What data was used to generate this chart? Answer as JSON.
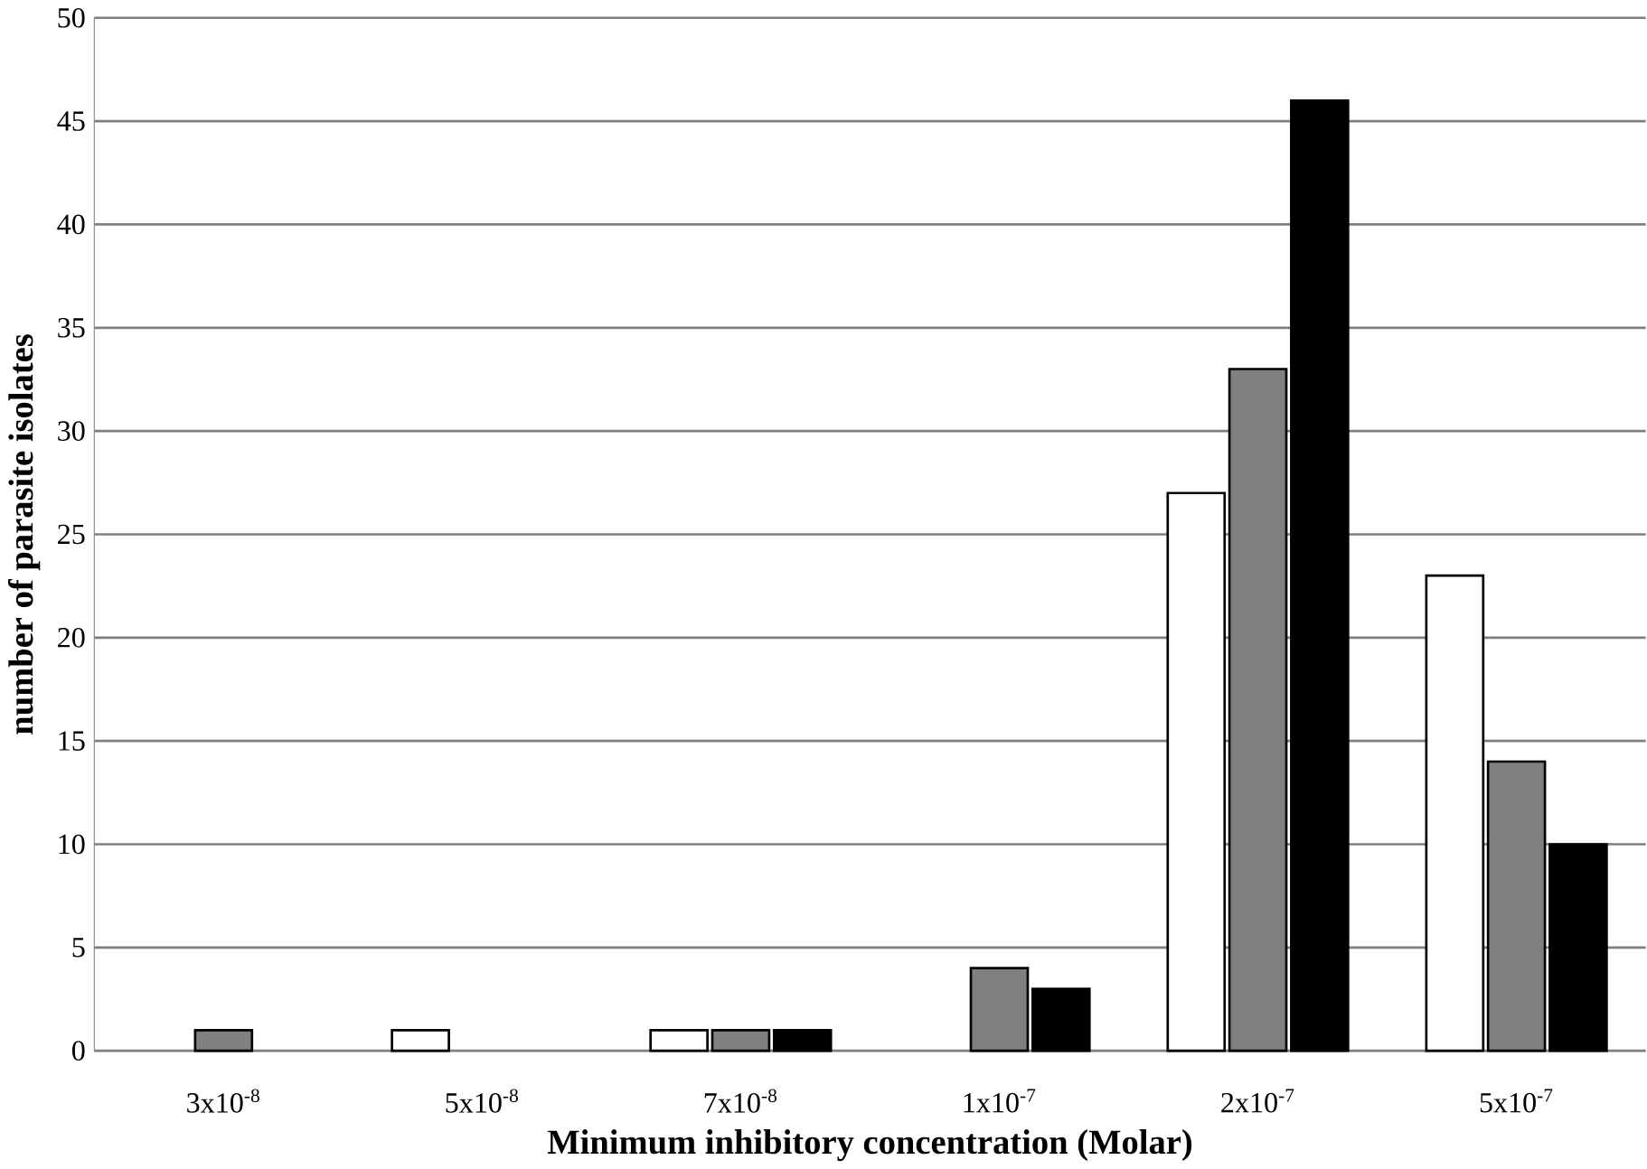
{
  "chart_data": {
    "type": "bar",
    "xlabel": "Minimum inhibitory concentration (Molar)",
    "ylabel": "number of parasite isolates",
    "categories": [
      "3x10$^{-8}$",
      "5x10$^{-8}$",
      "7x10$^{-8}$",
      "1x10$^{-7}$",
      "2x10$^{-7}$",
      "5x10$^{-7}$"
    ],
    "series": [
      {
        "color": "#ffffff",
        "values": [
          0,
          1,
          1,
          0,
          27,
          23
        ]
      },
      {
        "color": "#808080",
        "values": [
          1,
          0,
          1,
          4,
          33,
          14
        ]
      },
      {
        "color": "#000000",
        "values": [
          0,
          0,
          1,
          3,
          46,
          10
        ]
      }
    ],
    "ylim": [
      0,
      50
    ],
    "yticks": [
      0,
      5,
      10,
      15,
      20,
      25,
      30,
      35,
      40,
      45,
      50
    ],
    "grid": "y"
  }
}
